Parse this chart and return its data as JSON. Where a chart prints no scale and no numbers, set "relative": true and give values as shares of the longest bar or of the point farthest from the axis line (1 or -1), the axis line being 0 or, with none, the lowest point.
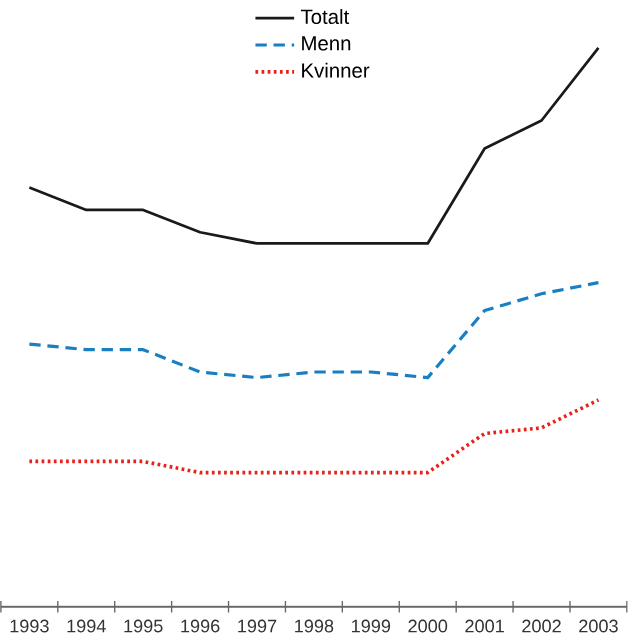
{
  "chart_data": {
    "type": "line",
    "relative": true,
    "categories": [
      "1993",
      "1994",
      "1995",
      "1996",
      "1997",
      "1998",
      "1999",
      "2000",
      "2001",
      "2002",
      "2003"
    ],
    "series": [
      {
        "name": "Totalt",
        "color": "#1a1a1a",
        "line_style": "solid",
        "values": [
          0.75,
          0.71,
          0.71,
          0.67,
          0.65,
          0.65,
          0.65,
          0.65,
          0.82,
          0.87,
          1.0
        ]
      },
      {
        "name": "Menn",
        "color": "#1a7fc1",
        "line_style": "dashed",
        "values": [
          0.47,
          0.46,
          0.46,
          0.42,
          0.41,
          0.42,
          0.42,
          0.41,
          0.53,
          0.56,
          0.58
        ]
      },
      {
        "name": "Kvinner",
        "color": "#e8221b",
        "line_style": "dotted",
        "values": [
          0.26,
          0.26,
          0.26,
          0.24,
          0.24,
          0.24,
          0.24,
          0.24,
          0.31,
          0.32,
          0.37
        ]
      }
    ],
    "legend": "top",
    "marker": "none"
  }
}
